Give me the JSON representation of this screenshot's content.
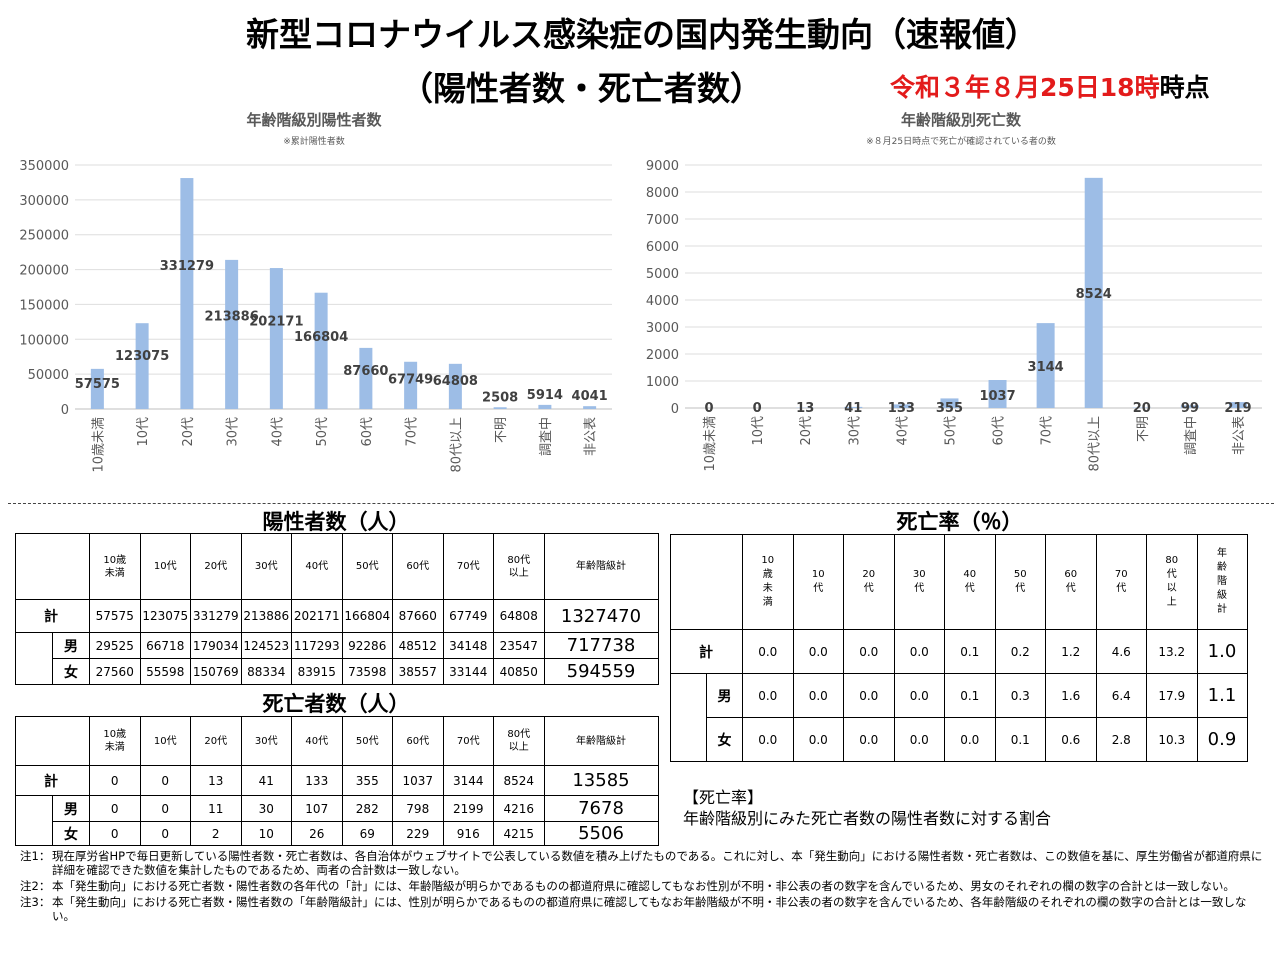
{
  "title": "新型コロナウイルス感染症の国内発生動向（速報値）",
  "subtitle": "（陽性者数・死亡者数）",
  "as_of": {
    "red": "令和３年８月25日18時",
    "black": "時点"
  },
  "chart_data": [
    {
      "type": "bar",
      "title": "年齢階級別陽性者数",
      "subtitle": "※累計陽性者数",
      "categories": [
        "10歳未満",
        "10代",
        "20代",
        "30代",
        "40代",
        "50代",
        "60代",
        "70代",
        "80代以上",
        "不明",
        "調査中",
        "非公表"
      ],
      "values": [
        57575,
        123075,
        331279,
        213886,
        202171,
        166804,
        87660,
        67749,
        64808,
        2508,
        5914,
        4041
      ],
      "ylim": [
        0,
        350000
      ],
      "yticks": [
        0,
        50000,
        100000,
        150000,
        200000,
        250000,
        300000,
        350000
      ],
      "color": "#9dbde6",
      "grid": true
    },
    {
      "type": "bar",
      "title": "年齢階級別死亡数",
      "subtitle": "※８月25日時点で死亡が確認されている者の数",
      "categories": [
        "10歳未満",
        "10代",
        "20代",
        "30代",
        "40代",
        "50代",
        "60代",
        "70代",
        "80代以上",
        "不明",
        "調査中",
        "非公表"
      ],
      "values": [
        0,
        0,
        13,
        41,
        133,
        355,
        1037,
        3144,
        8524,
        20,
        99,
        219
      ],
      "ylim": [
        0,
        9000
      ],
      "yticks": [
        0,
        1000,
        2000,
        3000,
        4000,
        5000,
        6000,
        7000,
        8000,
        9000
      ],
      "color": "#9dbde6",
      "grid": true
    }
  ],
  "positives_table": {
    "title": "陽性者数（人）",
    "headers": [
      "10歳\n未満",
      "10代",
      "20代",
      "30代",
      "40代",
      "50代",
      "60代",
      "70代",
      "80代\n以上",
      "年齢階級計"
    ],
    "rows": [
      {
        "label": "計",
        "values": [
          "57575",
          "123075",
          "331279",
          "213886",
          "202171",
          "166804",
          "87660",
          "67749",
          "64808"
        ],
        "total": "1327470"
      },
      {
        "label": "男",
        "values": [
          "29525",
          "66718",
          "179034",
          "124523",
          "117293",
          "92286",
          "48512",
          "34148",
          "23547"
        ],
        "total": "717738"
      },
      {
        "label": "女",
        "values": [
          "27560",
          "55598",
          "150769",
          "88334",
          "83915",
          "73598",
          "38557",
          "33144",
          "40850"
        ],
        "total": "594559"
      }
    ]
  },
  "deaths_table": {
    "title": "死亡者数（人）",
    "headers": [
      "10歳\n未満",
      "10代",
      "20代",
      "30代",
      "40代",
      "50代",
      "60代",
      "70代",
      "80代\n以上",
      "年齢階級計"
    ],
    "rows": [
      {
        "label": "計",
        "values": [
          "0",
          "0",
          "13",
          "41",
          "133",
          "355",
          "1037",
          "3144",
          "8524"
        ],
        "total": "13585"
      },
      {
        "label": "男",
        "values": [
          "0",
          "0",
          "11",
          "30",
          "107",
          "282",
          "798",
          "2199",
          "4216"
        ],
        "total": "7678"
      },
      {
        "label": "女",
        "values": [
          "0",
          "0",
          "2",
          "10",
          "26",
          "69",
          "229",
          "916",
          "4215"
        ],
        "total": "5506"
      }
    ]
  },
  "mortality_table": {
    "title": "死亡率（％）",
    "headers": [
      "10\n歳\n未\n満",
      "10\n代",
      "20\n代",
      "30\n代",
      "40\n代",
      "50\n代",
      "60\n代",
      "70\n代",
      "80\n代\n以\n上",
      "年\n齢\n階\n級\n計"
    ],
    "rows": [
      {
        "label": "計",
        "values": [
          "0.0",
          "0.0",
          "0.0",
          "0.0",
          "0.1",
          "0.2",
          "1.2",
          "4.6",
          "13.2"
        ],
        "total": "1.0"
      },
      {
        "label": "男",
        "values": [
          "0.0",
          "0.0",
          "0.0",
          "0.0",
          "0.1",
          "0.3",
          "1.6",
          "6.4",
          "17.9"
        ],
        "total": "1.1"
      },
      {
        "label": "女",
        "values": [
          "0.0",
          "0.0",
          "0.0",
          "0.0",
          "0.0",
          "0.1",
          "0.6",
          "2.8",
          "10.3"
        ],
        "total": "0.9"
      }
    ]
  },
  "mortality_note": {
    "heading": "【死亡率】",
    "text": "年齢階級別にみた死亡者数の陽性者数に対する割合"
  },
  "notes": [
    {
      "label": "注1：",
      "text": "現在厚労省HPで毎日更新している陽性者数・死亡者数は、各自治体がウェブサイトで公表している数値を積み上げたものである。これに対し、本「発生動向」における陽性者数・死亡者数は、この数値を基に、厚生労働省が都道府県に詳細を確認できた数値を集計したものであるため、両者の合計数は一致しない。"
    },
    {
      "label": "注2：",
      "text": "本「発生動向」における死亡者数・陽性者数の各年代の「計」には、年齢階級が明らかであるものの都道府県に確認してもなお性別が不明・非公表の者の数字を含んでいるため、男女のそれぞれの欄の数字の合計とは一致しない。"
    },
    {
      "label": "注3：",
      "text": "本「発生動向」における死亡者数・陽性者数の「年齢階級計」には、性別が明らかであるものの都道府県に確認してもなお年齢階級が不明・非公表の者の数字を含んでいるため、各年齢階級のそれぞれの欄の数字の合計とは一致しない。"
    }
  ]
}
